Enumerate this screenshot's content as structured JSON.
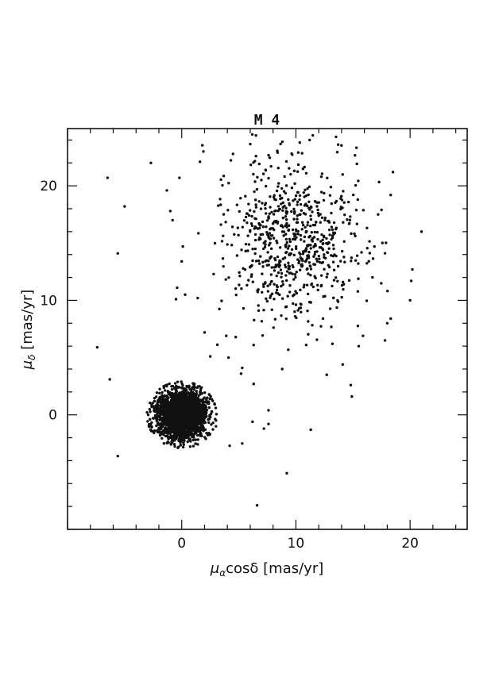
{
  "chart_data": {
    "type": "scatter",
    "title": "M 4",
    "xlabel": {
      "mu": "μ",
      "sub": "α",
      "rest": "cosδ [mas/yr]"
    },
    "ylabel": {
      "mu": "μ",
      "sub": "δ",
      "rest": " [mas/yr]"
    },
    "xlim": [
      -10,
      25
    ],
    "ylim": [
      -10,
      25
    ],
    "xticks": [
      0,
      10,
      20
    ],
    "yticks": [
      0,
      10,
      20
    ],
    "grid": false,
    "legend": "none",
    "marker_color": "#111111",
    "clusters": [
      {
        "kind": "cluster",
        "center": [
          0,
          0
        ],
        "spread": [
          1.05,
          1.0
        ],
        "count": 2600
      },
      {
        "kind": "field",
        "center": [
          9.7,
          15.3
        ],
        "spread": [
          2.9,
          3.3
        ],
        "count": 720
      }
    ],
    "outliers": [
      [
        -6.5,
        20.7
      ],
      [
        -5.0,
        18.2
      ],
      [
        -2.7,
        22.0
      ],
      [
        -5.6,
        14.1
      ],
      [
        -7.4,
        5.9
      ],
      [
        -6.3,
        3.1
      ],
      [
        -5.6,
        -3.6
      ],
      [
        -1.0,
        17.8
      ],
      [
        -0.8,
        17.0
      ],
      [
        0.1,
        14.7
      ],
      [
        -0.4,
        11.1
      ],
      [
        -0.5,
        10.1
      ],
      [
        1.4,
        10.2
      ],
      [
        -1.3,
        19.6
      ],
      [
        -0.2,
        20.7
      ],
      [
        0.0,
        13.4
      ],
      [
        0.3,
        10.5
      ],
      [
        2.0,
        7.2
      ],
      [
        2.5,
        5.1
      ],
      [
        3.9,
        6.9
      ],
      [
        4.1,
        5.0
      ],
      [
        5.3,
        4.1
      ],
      [
        5.2,
        3.6
      ],
      [
        6.3,
        2.7
      ],
      [
        7.6,
        -0.8
      ],
      [
        7.2,
        -1.2
      ],
      [
        6.2,
        -0.6
      ],
      [
        5.3,
        -2.5
      ],
      [
        6.6,
        -7.9
      ],
      [
        9.2,
        -5.1
      ],
      [
        11.3,
        -1.3
      ],
      [
        7.6,
        0.4
      ],
      [
        4.2,
        -2.7
      ],
      [
        3.0,
        -1.0
      ],
      [
        12.7,
        3.5
      ],
      [
        14.1,
        4.4
      ],
      [
        14.8,
        2.6
      ],
      [
        14.9,
        1.6
      ],
      [
        15.5,
        6.0
      ],
      [
        17.8,
        6.5
      ],
      [
        18.0,
        8.0
      ],
      [
        18.3,
        8.4
      ],
      [
        20.0,
        10.0
      ],
      [
        20.2,
        12.7
      ],
      [
        20.1,
        11.7
      ],
      [
        21.0,
        16.0
      ],
      [
        18.5,
        21.2
      ],
      [
        17.5,
        17.9
      ],
      [
        17.2,
        17.5
      ],
      [
        18.3,
        19.2
      ],
      [
        13.7,
        23.6
      ],
      [
        11.2,
        24.0
      ],
      [
        6.5,
        24.4
      ],
      [
        8.4,
        22.9
      ],
      [
        1.9,
        23.0
      ],
      [
        1.6,
        22.1
      ],
      [
        6.3,
        6.1
      ],
      [
        10.9,
        6.1
      ],
      [
        13.2,
        6.2
      ],
      [
        8.8,
        4.0
      ]
    ]
  }
}
